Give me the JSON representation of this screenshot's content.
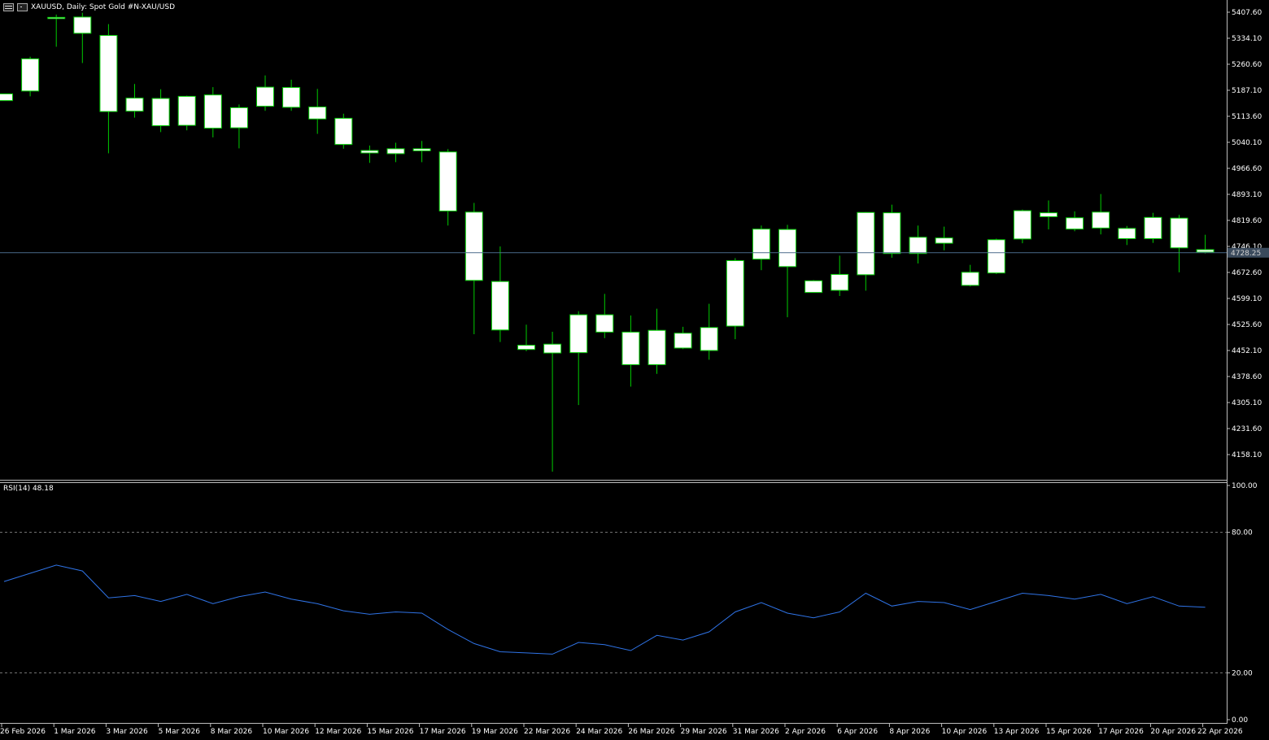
{
  "window": {
    "title": "XAUUSD, Daily:  Spot Gold #N-XAU/USD",
    "icons": [
      "chart-window-icon",
      "chart-type-icon"
    ]
  },
  "colors": {
    "background": "#000000",
    "candle_body": "#ffffff",
    "candle_outline": "#00cc00",
    "wick": "#00cc00",
    "rsi_line": "#2f73e6",
    "bid_line": "#4a6a8a",
    "grid": "#7a7a7a"
  },
  "price_axis": {
    "labels": [
      "5407.60",
      "5334.10",
      "5260.60",
      "5187.10",
      "5113.60",
      "5040.10",
      "4966.60",
      "4893.10",
      "4819.60",
      "4746.10",
      "4672.60",
      "4599.10",
      "4525.60",
      "4452.10",
      "4378.60",
      "4305.10",
      "4231.60",
      "4158.10"
    ],
    "current_price": "4728.25"
  },
  "rsi": {
    "label": "RSI(14) 48.18",
    "axis_labels": [
      "100.00",
      "80.00",
      "20.00",
      "0.00"
    ],
    "levels": [
      80,
      20
    ]
  },
  "time_axis": {
    "labels": [
      "26 Feb 2026",
      "1 Mar 2026",
      "3 Mar 2026",
      "5 Mar 2026",
      "8 Mar 2026",
      "10 Mar 2026",
      "12 Mar 2026",
      "15 Mar 2026",
      "17 Mar 2026",
      "19 Mar 2026",
      "22 Mar 2026",
      "24 Mar 2026",
      "26 Mar 2026",
      "29 Mar 2026",
      "31 Mar 2026",
      "2 Apr 2026",
      "6 Apr 2026",
      "8 Apr 2026",
      "10 Apr 2026",
      "13 Apr 2026",
      "15 Apr 2026",
      "17 Apr 2026",
      "20 Apr 2026",
      "22 Apr 2026"
    ]
  },
  "chart_data": [
    {
      "type": "candlestick",
      "title": "XAUUSD, Daily:  Spot Gold #N-XAU/USD",
      "ylim": [
        4130,
        5420
      ],
      "candles": [
        {
          "o": 5177,
          "h": 5177,
          "l": 5160,
          "c": 5158
        },
        {
          "o": 5185,
          "h": 5282,
          "l": 5170,
          "c": 5276
        },
        {
          "o": 5390,
          "h": 5401,
          "l": 5310,
          "c": 5393
        },
        {
          "o": 5394,
          "h": 5406,
          "l": 5264,
          "c": 5348
        },
        {
          "o": 5342,
          "h": 5374,
          "l": 5009,
          "c": 5127
        },
        {
          "o": 5128,
          "h": 5205,
          "l": 5110,
          "c": 5165
        },
        {
          "o": 5164,
          "h": 5190,
          "l": 5069,
          "c": 5087
        },
        {
          "o": 5088,
          "h": 5172,
          "l": 5074,
          "c": 5170
        },
        {
          "o": 5174,
          "h": 5196,
          "l": 5054,
          "c": 5080
        },
        {
          "o": 5081,
          "h": 5147,
          "l": 5023,
          "c": 5138
        },
        {
          "o": 5142,
          "h": 5229,
          "l": 5129,
          "c": 5196
        },
        {
          "o": 5195,
          "h": 5217,
          "l": 5129,
          "c": 5139
        },
        {
          "o": 5140,
          "h": 5191,
          "l": 5064,
          "c": 5106
        },
        {
          "o": 5108,
          "h": 5121,
          "l": 5022,
          "c": 5034
        },
        {
          "o": 5017,
          "h": 5031,
          "l": 4982,
          "c": 5010
        },
        {
          "o": 5008,
          "h": 5039,
          "l": 4984,
          "c": 5022
        },
        {
          "o": 5016,
          "h": 5044,
          "l": 4984,
          "c": 5022
        },
        {
          "o": 5013,
          "h": 5021,
          "l": 4805,
          "c": 4846
        },
        {
          "o": 4843,
          "h": 4869,
          "l": 4498,
          "c": 4650
        },
        {
          "o": 4647,
          "h": 4746,
          "l": 4476,
          "c": 4510
        },
        {
          "o": 4455,
          "h": 4525,
          "l": 4450,
          "c": 4467
        },
        {
          "o": 4470,
          "h": 4505,
          "l": 4110,
          "c": 4445
        },
        {
          "o": 4446,
          "h": 4563,
          "l": 4298,
          "c": 4553
        },
        {
          "o": 4553,
          "h": 4612,
          "l": 4487,
          "c": 4504
        },
        {
          "o": 4504,
          "h": 4551,
          "l": 4350,
          "c": 4412
        },
        {
          "o": 4412,
          "h": 4570,
          "l": 4386,
          "c": 4509
        },
        {
          "o": 4459,
          "h": 4519,
          "l": 4456,
          "c": 4501
        },
        {
          "o": 4452,
          "h": 4584,
          "l": 4426,
          "c": 4517
        },
        {
          "o": 4521,
          "h": 4713,
          "l": 4484,
          "c": 4706
        },
        {
          "o": 4710,
          "h": 4805,
          "l": 4679,
          "c": 4795
        },
        {
          "o": 4794,
          "h": 4807,
          "l": 4546,
          "c": 4689
        },
        {
          "o": 4649,
          "h": 4651,
          "l": 4621,
          "c": 4616
        },
        {
          "o": 4622,
          "h": 4720,
          "l": 4606,
          "c": 4667
        },
        {
          "o": 4666,
          "h": 4843,
          "l": 4621,
          "c": 4842
        },
        {
          "o": 4841,
          "h": 4864,
          "l": 4714,
          "c": 4726
        },
        {
          "o": 4726,
          "h": 4805,
          "l": 4698,
          "c": 4772
        },
        {
          "o": 4770,
          "h": 4802,
          "l": 4735,
          "c": 4755
        },
        {
          "o": 4636,
          "h": 4694,
          "l": 4633,
          "c": 4673
        },
        {
          "o": 4671,
          "h": 4768,
          "l": 4668,
          "c": 4765
        },
        {
          "o": 4767,
          "h": 4850,
          "l": 4755,
          "c": 4847
        },
        {
          "o": 4841,
          "h": 4876,
          "l": 4794,
          "c": 4830
        },
        {
          "o": 4827,
          "h": 4845,
          "l": 4789,
          "c": 4795
        },
        {
          "o": 4798,
          "h": 4894,
          "l": 4780,
          "c": 4843
        },
        {
          "o": 4797,
          "h": 4804,
          "l": 4750,
          "c": 4768
        },
        {
          "o": 4768,
          "h": 4841,
          "l": 4756,
          "c": 4828
        },
        {
          "o": 4826,
          "h": 4835,
          "l": 4673,
          "c": 4742
        },
        {
          "o": 4737,
          "h": 4779,
          "l": 4726,
          "c": 4730
        }
      ]
    },
    {
      "type": "line",
      "title": "RSI(14) 48.18",
      "ylim": [
        0,
        100
      ],
      "series": [
        {
          "name": "RSI(14)",
          "values": [
            59,
            62.5,
            66,
            63.5,
            52,
            53,
            50.5,
            53.5,
            49.5,
            52.5,
            54.5,
            51.5,
            49.5,
            46.5,
            45,
            46,
            45.5,
            38.5,
            32.5,
            29,
            28.5,
            28,
            33,
            32,
            29.5,
            36,
            34,
            37.5,
            46,
            50,
            45.5,
            43.5,
            46,
            54,
            48.5,
            50.5,
            50,
            47,
            50.5,
            54,
            53,
            51.5,
            53.5,
            49.5,
            52.5,
            48.5,
            48
          ]
        }
      ]
    }
  ]
}
